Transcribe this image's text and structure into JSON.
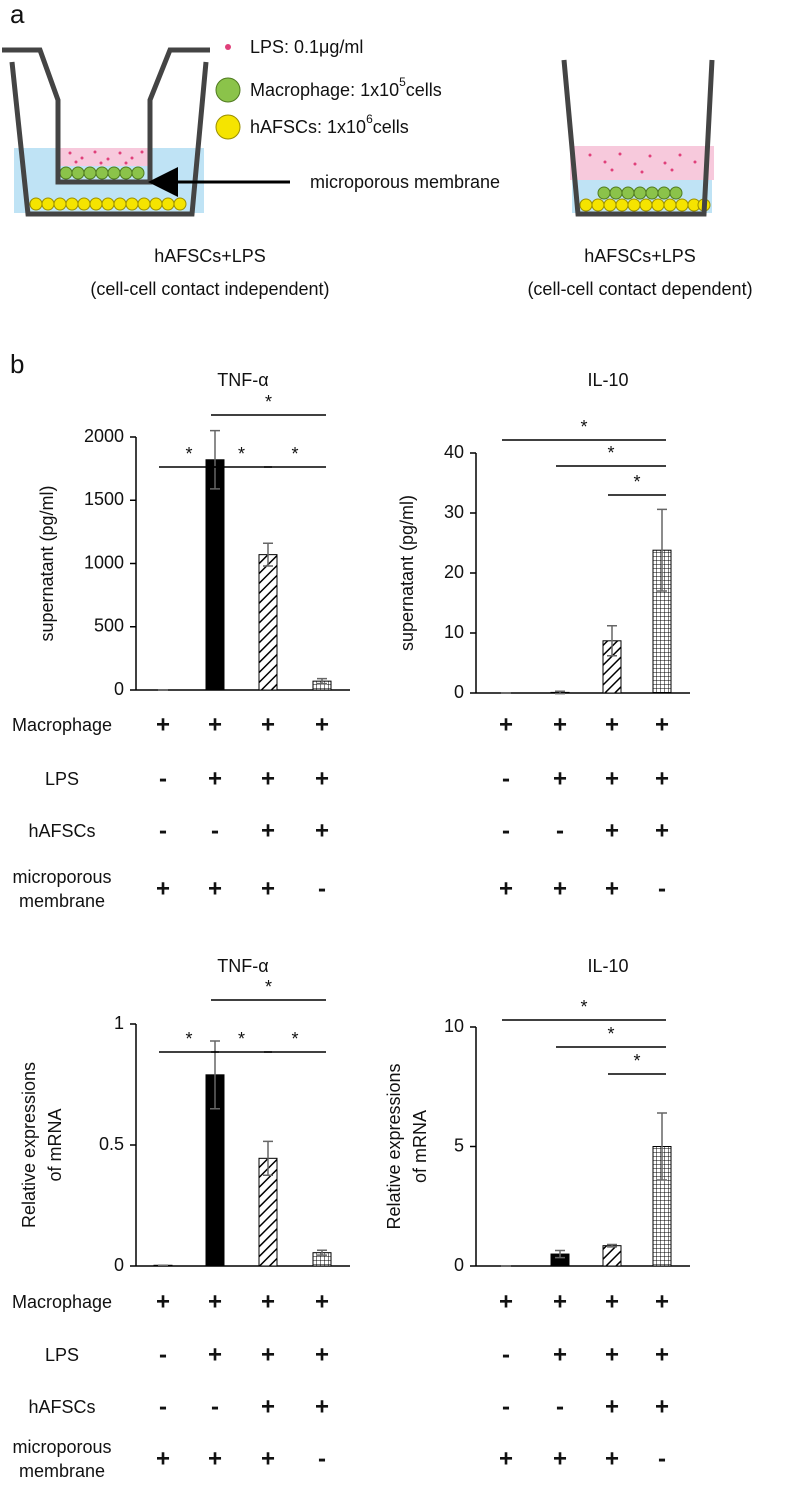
{
  "panel_labels": [
    "a",
    "b"
  ],
  "diagram": {
    "legend": [
      {
        "text": "LPS: 0.1μg/ml"
      },
      {
        "text": "Macrophage: 1x10",
        "sup": "5",
        "after": "cells"
      },
      {
        "text": "hAFSCs: 1x10",
        "sup": "6",
        "after": "cells"
      }
    ],
    "membrane_label": "microporous membrane",
    "captions": [
      [
        "hAFSCs+LPS",
        "(cell-cell contact independent)"
      ],
      [
        "hAFSCs+LPS",
        "(cell-cell contact dependent)"
      ]
    ]
  },
  "chart_data": [
    {
      "type": "bar",
      "title": "TNF-α",
      "ylabel": [
        "supernatant (pg/ml)"
      ],
      "categories": [
        null,
        null,
        null,
        null
      ],
      "values": [
        0,
        1820,
        1070,
        70
      ],
      "errors": [
        0,
        230,
        90,
        20
      ],
      "fills": [
        "solid",
        "solid",
        "hatch",
        "grid"
      ],
      "color": "#000000",
      "ylim": [
        0,
        2000
      ],
      "yticks": [
        0,
        500,
        1000,
        1500,
        2000
      ],
      "significance": [
        {
          "from": 0,
          "to": 1,
          "label": "*"
        },
        {
          "from": 1,
          "to": 2,
          "label": "*"
        },
        {
          "from": 2,
          "to": 3,
          "label": "*"
        },
        {
          "from": 1,
          "to": 3,
          "label": "*"
        }
      ]
    },
    {
      "type": "bar",
      "title": "IL-10",
      "ylabel": [
        "supernatant (pg/ml)"
      ],
      "categories": [
        null,
        null,
        null,
        null
      ],
      "values": [
        0,
        0.1,
        8.7,
        23.8
      ],
      "errors": [
        0,
        0.2,
        2.5,
        6.8
      ],
      "fills": [
        "solid",
        "solid",
        "hatch",
        "grid"
      ],
      "color": "#000000",
      "ylim": [
        0,
        40
      ],
      "yticks": [
        0,
        10,
        20,
        30,
        40
      ],
      "significance": [
        {
          "from": 0,
          "to": 3,
          "label": "*"
        },
        {
          "from": 1,
          "to": 3,
          "label": "*"
        },
        {
          "from": 2,
          "to": 3,
          "label": "*"
        }
      ]
    },
    {
      "type": "bar",
      "title": "TNF-α",
      "ylabel": [
        "Relative expressions",
        "of mRNA"
      ],
      "categories": [
        null,
        null,
        null,
        null
      ],
      "values": [
        0.003,
        0.79,
        0.445,
        0.055
      ],
      "errors": [
        0,
        0.14,
        0.07,
        0.01
      ],
      "fills": [
        "solid",
        "solid",
        "hatch",
        "grid"
      ],
      "color": "#000000",
      "ylim": [
        0,
        1
      ],
      "yticks": [
        0,
        0.5,
        1
      ],
      "significance": [
        {
          "from": 0,
          "to": 1,
          "label": "*"
        },
        {
          "from": 1,
          "to": 2,
          "label": "*"
        },
        {
          "from": 2,
          "to": 3,
          "label": "*"
        },
        {
          "from": 1,
          "to": 3,
          "label": "*"
        }
      ]
    },
    {
      "type": "bar",
      "title": "IL-10",
      "ylabel": [
        "Relative expressions",
        "of mRNA"
      ],
      "categories": [
        null,
        null,
        null,
        null
      ],
      "values": [
        0,
        0.5,
        0.85,
        5.0
      ],
      "errors": [
        0,
        0.15,
        0.05,
        1.4
      ],
      "fills": [
        "solid",
        "solid",
        "hatch",
        "grid"
      ],
      "color": "#000000",
      "ylim": [
        0,
        10
      ],
      "yticks": [
        0,
        5,
        10
      ],
      "significance": [
        {
          "from": 0,
          "to": 3,
          "label": "*"
        },
        {
          "from": 1,
          "to": 3,
          "label": "*"
        },
        {
          "from": 2,
          "to": 3,
          "label": "*"
        }
      ]
    }
  ],
  "tables": [
    {
      "rows": [
        {
          "label": [
            "Macrophage"
          ],
          "left": [
            "+",
            "+",
            "+",
            "+"
          ],
          "right": [
            "+",
            "+",
            "+",
            "+"
          ]
        },
        {
          "label": [
            "LPS"
          ],
          "left": [
            "-",
            "+",
            "+",
            "+"
          ],
          "right": [
            "-",
            "+",
            "+",
            "+"
          ]
        },
        {
          "label": [
            "hAFSCs"
          ],
          "left": [
            "-",
            "-",
            "+",
            "+"
          ],
          "right": [
            "-",
            "-",
            "+",
            "+"
          ]
        },
        {
          "label": [
            "microporous",
            "membrane"
          ],
          "left": [
            "+",
            "+",
            "+",
            "-"
          ],
          "right": [
            "+",
            "+",
            "+",
            "-"
          ]
        }
      ]
    },
    {
      "rows": [
        {
          "label": [
            "Macrophage"
          ],
          "left": [
            "+",
            "+",
            "+",
            "+"
          ],
          "right": [
            "+",
            "+",
            "+",
            "+"
          ]
        },
        {
          "label": [
            "LPS"
          ],
          "left": [
            "-",
            "+",
            "+",
            "+"
          ],
          "right": [
            "-",
            "+",
            "+",
            "+"
          ]
        },
        {
          "label": [
            "hAFSCs"
          ],
          "left": [
            "-",
            "-",
            "+",
            "+"
          ],
          "right": [
            "-",
            "-",
            "+",
            "+"
          ]
        },
        {
          "label": [
            "microporous",
            "membrane"
          ],
          "left": [
            "+",
            "+",
            "+",
            "-"
          ],
          "right": [
            "+",
            "+",
            "+",
            "-"
          ]
        }
      ]
    }
  ]
}
